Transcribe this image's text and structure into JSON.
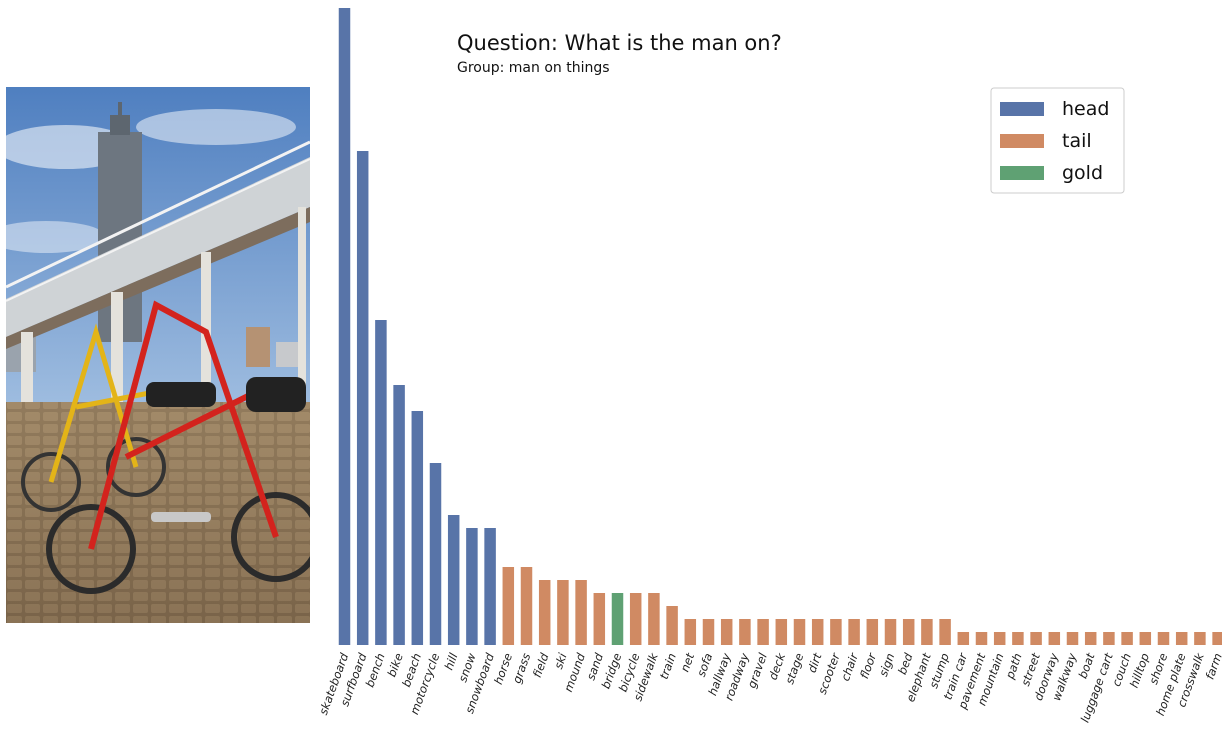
{
  "chart_data": {
    "type": "bar",
    "title": "Question: What is the man on?",
    "subtitle": "Group: man on things",
    "xlabel": "",
    "ylabel": "",
    "ylim": [
      0,
      49
    ],
    "grid": false,
    "legend_position": "top-right",
    "legend": [
      {
        "label": "head",
        "color": "#5874a8"
      },
      {
        "label": "tail",
        "color": "#d08a63"
      },
      {
        "label": "gold",
        "color": "#5fa173"
      }
    ],
    "categories": [
      "skateboard",
      "surfboard",
      "bench",
      "bike",
      "beach",
      "motorcycle",
      "hill",
      "snow",
      "snowboard",
      "horse",
      "grass",
      "field",
      "ski",
      "mound",
      "sand",
      "bridge",
      "bicycle",
      "sidewalk",
      "train",
      "net",
      "sofa",
      "hallway",
      "roadway",
      "gravel",
      "deck",
      "stage",
      "dirt",
      "scooter",
      "chair",
      "floor",
      "sign",
      "bed",
      "elephant",
      "stump",
      "train car",
      "pavement",
      "mountain",
      "path",
      "street",
      "doorway",
      "walkway",
      "boat",
      "luggage cart",
      "couch",
      "hilltop",
      "shore",
      "home plate",
      "crosswalk",
      "farm"
    ],
    "values": [
      49,
      38,
      25,
      20,
      18,
      14,
      10,
      9,
      9,
      6,
      6,
      5,
      5,
      5,
      4,
      4,
      4,
      4,
      3,
      2,
      2,
      2,
      2,
      2,
      2,
      2,
      2,
      2,
      2,
      2,
      2,
      2,
      2,
      2,
      1,
      1,
      1,
      1,
      1,
      1,
      1,
      1,
      1,
      1,
      1,
      1,
      1,
      1,
      1
    ],
    "groups": [
      "head",
      "head",
      "head",
      "head",
      "head",
      "head",
      "head",
      "head",
      "head",
      "tail",
      "tail",
      "tail",
      "tail",
      "tail",
      "tail",
      "gold",
      "tail",
      "tail",
      "tail",
      "tail",
      "tail",
      "tail",
      "tail",
      "tail",
      "tail",
      "tail",
      "tail",
      "tail",
      "tail",
      "tail",
      "tail",
      "tail",
      "tail",
      "tail",
      "tail",
      "tail",
      "tail",
      "tail",
      "tail",
      "tail",
      "tail",
      "tail",
      "tail",
      "tail",
      "tail",
      "tail",
      "tail",
      "tail",
      "tail"
    ]
  },
  "image": {
    "description_icon": "photo-bicycles-under-bridge"
  }
}
